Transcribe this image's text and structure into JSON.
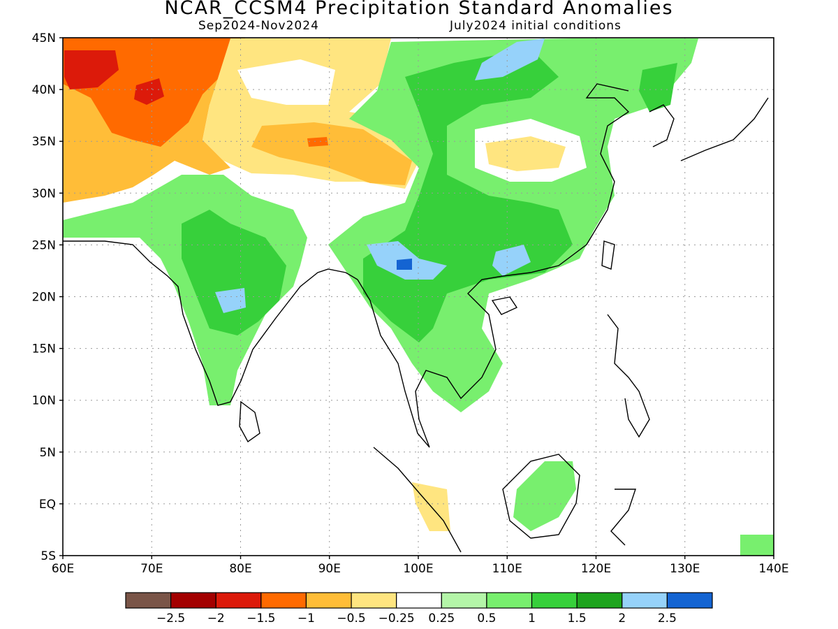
{
  "title": "NCAR_CCSM4 Precipitation Standard Anomalies",
  "subtitle_left": "Sep2024-Nov2024",
  "subtitle_right": "July2024 initial conditions",
  "map": {
    "lon_range": [
      60,
      140
    ],
    "lat_range": [
      -5,
      45
    ],
    "lat_ticks": [
      {
        "value": 45,
        "label": "45N"
      },
      {
        "value": 40,
        "label": "40N"
      },
      {
        "value": 35,
        "label": "35N"
      },
      {
        "value": 30,
        "label": "30N"
      },
      {
        "value": 25,
        "label": "25N"
      },
      {
        "value": 20,
        "label": "20N"
      },
      {
        "value": 15,
        "label": "15N"
      },
      {
        "value": 10,
        "label": "10N"
      },
      {
        "value": 5,
        "label": "5N"
      },
      {
        "value": 0,
        "label": "EQ"
      },
      {
        "value": -5,
        "label": "5S"
      }
    ],
    "lon_ticks": [
      {
        "value": 60,
        "label": "60E"
      },
      {
        "value": 70,
        "label": "70E"
      },
      {
        "value": 80,
        "label": "80E"
      },
      {
        "value": 90,
        "label": "90E"
      },
      {
        "value": 100,
        "label": "100E"
      },
      {
        "value": 110,
        "label": "110E"
      },
      {
        "value": 120,
        "label": "120E"
      },
      {
        "value": 130,
        "label": "130E"
      },
      {
        "value": 140,
        "label": "140E"
      }
    ],
    "gridlines": "dotted"
  },
  "colorbar": {
    "colors": [
      "#7a5548",
      "#a30000",
      "#dc1a0a",
      "#ff6a00",
      "#ffbd38",
      "#ffe580",
      "#ffffff",
      "#b4f5a8",
      "#78ef6e",
      "#37d03b",
      "#1ea41e",
      "#96d2fa",
      "#1464d2"
    ],
    "labels": [
      "-2.5",
      "-2",
      "-1.5",
      "-1",
      "-0.5",
      "-0.25",
      "0.25",
      "0.5",
      "1",
      "1.5",
      "2",
      "2.5"
    ]
  }
}
